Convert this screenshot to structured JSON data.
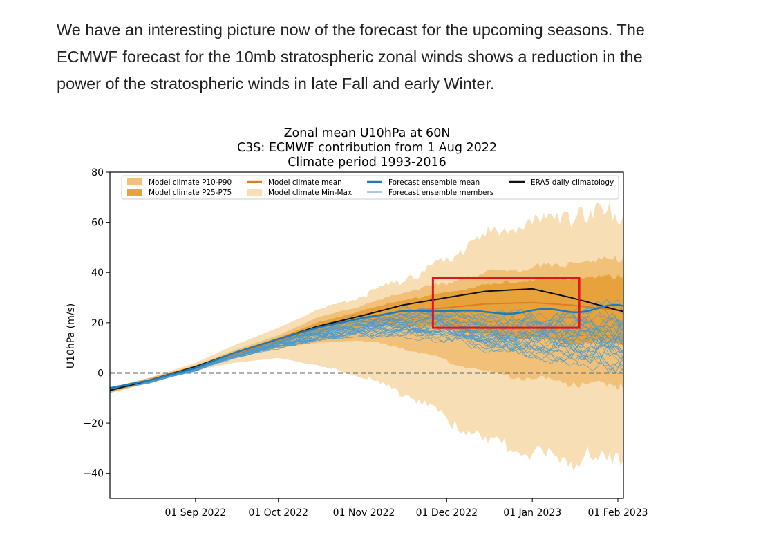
{
  "article": {
    "paragraph": "We have an interesting picture now of the forecast for the upcoming seasons. The ECMWF forecast for the 10mb stratospheric zonal winds shows a reduction in the power of the stratospheric winds in late Fall and early Winter."
  },
  "chart_data": {
    "type": "area",
    "title": "Zonal mean U10hPa at 60N",
    "subtitle": [
      "C3S: ECMWF contribution from 1 Aug 2022",
      "Climate period 1993-2016"
    ],
    "ylabel": "U10hPa (m/s)",
    "xlabel": "",
    "ylim": [
      -50,
      80
    ],
    "xlim": [
      "2022-08-01",
      "2023-02-03"
    ],
    "yticks": [
      80,
      60,
      40,
      20,
      0,
      -20,
      -40
    ],
    "ytick_labels": [
      "80",
      "60",
      "40",
      "20",
      "0",
      "−20",
      "−40"
    ],
    "xticks": [
      "2022-09-01",
      "2022-10-01",
      "2022-11-01",
      "2022-12-01",
      "2023-01-01",
      "2023-02-01"
    ],
    "xtick_labels": [
      "01 Sep 2022",
      "01 Oct 2022",
      "01 Nov 2022",
      "01 Dec 2022",
      "01 Jan 2023",
      "01 Feb 2023"
    ],
    "grid": false,
    "legend_position": "top",
    "colors": {
      "minmax": "#f7deb4",
      "p10p90": "#f1c17a",
      "p25p75": "#e7a23c",
      "clim_mean": "#e07b20",
      "ens_mean": "#1f7ab8",
      "ens_member": "#4d9ac8",
      "era5": "#111111",
      "zero_line": "#666666",
      "highlight_box": "#e0161c"
    },
    "legend": [
      {
        "label": "Model climate P10-P90",
        "kind": "patch",
        "color_key": "p10p90"
      },
      {
        "label": "Model climate P25-P75",
        "kind": "patch",
        "color_key": "p25p75"
      },
      {
        "label": "Model climate mean",
        "kind": "line",
        "color_key": "clim_mean"
      },
      {
        "label": "Model climate Min-Max",
        "kind": "patch",
        "color_key": "minmax"
      },
      {
        "label": "Forecast ensemble mean",
        "kind": "line",
        "color_key": "ens_mean"
      },
      {
        "label": "Forecast ensemble members",
        "kind": "thin",
        "color_key": "ens_member"
      },
      {
        "label": "ERA5 daily climatology",
        "kind": "line",
        "color_key": "era5"
      }
    ],
    "x": [
      "2022-08-01",
      "2022-08-15",
      "2022-09-01",
      "2022-09-15",
      "2022-10-01",
      "2022-10-15",
      "2022-11-01",
      "2022-11-15",
      "2022-12-01",
      "2022-12-15",
      "2023-01-01",
      "2023-01-15",
      "2023-02-01",
      "2023-02-03"
    ],
    "series": [
      {
        "name": "Model climate Min-Max",
        "kind": "band",
        "lower": [
          -8,
          -4,
          1,
          4,
          6,
          3,
          -2,
          -8,
          -18,
          -28,
          -32,
          -35,
          -34,
          -34
        ],
        "upper": [
          -6,
          -2,
          4,
          11,
          18,
          25,
          31,
          37,
          45,
          55,
          60,
          63,
          64,
          64
        ]
      },
      {
        "name": "Model climate P10-P90",
        "kind": "band",
        "lower": [
          -8,
          -4,
          2,
          6,
          10,
          12,
          13,
          10,
          5,
          0,
          -2,
          -4,
          -5,
          -5
        ],
        "upper": [
          -6,
          -2,
          3,
          9,
          15,
          22,
          27,
          32,
          36,
          40,
          42,
          44,
          45,
          45
        ]
      },
      {
        "name": "Model climate P25-P75",
        "kind": "band",
        "lower": [
          -7.5,
          -3.5,
          2,
          7,
          12,
          16,
          19,
          19,
          18,
          15,
          14,
          12,
          12,
          12
        ],
        "upper": [
          -6.5,
          -2.5,
          3,
          8,
          14,
          20,
          25,
          29,
          32,
          35,
          37,
          38,
          38,
          38
        ]
      },
      {
        "name": "Model climate mean",
        "kind": "line",
        "values": [
          -7,
          -3,
          2.5,
          7.5,
          13,
          18,
          22,
          24.5,
          26,
          27.5,
          28,
          27,
          25,
          24.5
        ]
      },
      {
        "name": "ERA5 daily climatology",
        "kind": "line",
        "values": [
          -7,
          -3,
          2.5,
          8,
          13.5,
          18.5,
          23,
          27,
          30,
          32.5,
          33.5,
          30,
          25,
          24.5
        ]
      },
      {
        "name": "Forecast ensemble mean",
        "kind": "line",
        "values": [
          -6,
          -3,
          2,
          8,
          13.5,
          18,
          22,
          24.5,
          25,
          24,
          24.5,
          25,
          26,
          26
        ]
      }
    ],
    "annotations": [
      {
        "type": "hline",
        "y": 0,
        "style": "dashed"
      },
      {
        "type": "box",
        "x0": "2022-11-26",
        "x1": "2023-01-18",
        "y0": 18,
        "y1": 38
      }
    ]
  }
}
